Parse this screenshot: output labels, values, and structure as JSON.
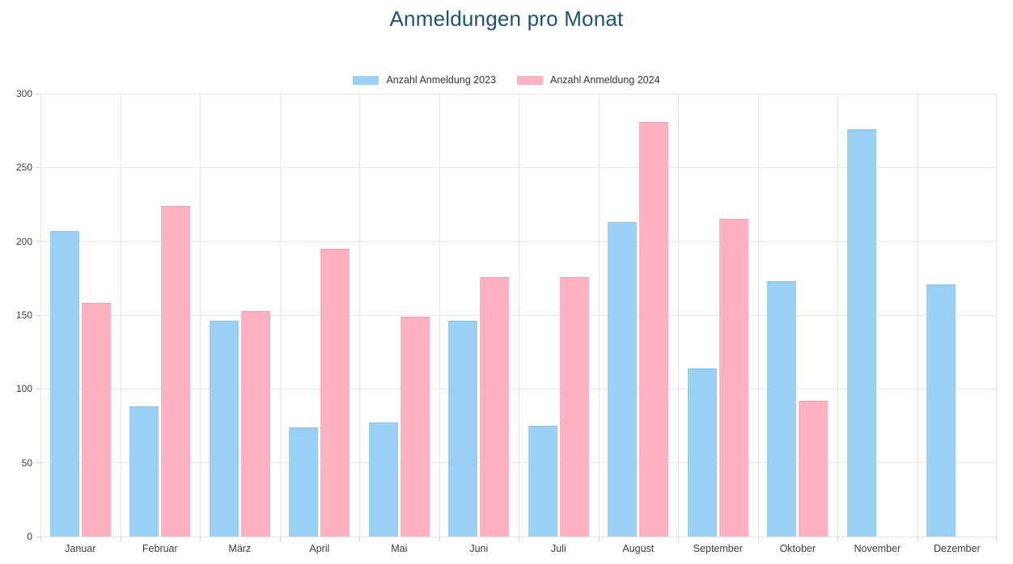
{
  "title": "Anmeldungen pro Monat",
  "title_color": "#1E5273",
  "chart_data": {
    "type": "bar",
    "title": "Anmeldungen pro Monat",
    "categories": [
      "Januar",
      "Februar",
      "März",
      "April",
      "Mai",
      "Juni",
      "Juli",
      "August",
      "September",
      "Oktober",
      "November",
      "Dezember"
    ],
    "series": [
      {
        "key": "2023",
        "name": "Anzahl Anmeldung 2023",
        "color": "#9BD0F5",
        "border_color": "#7FC0F0",
        "values": [
          207,
          88,
          146,
          74,
          77,
          146,
          75,
          213,
          114,
          173,
          276,
          171
        ]
      },
      {
        "key": "2024",
        "name": "Anzahl Anmeldung 2024",
        "color": "#FFB1C1",
        "border_color": "#FF9BB0",
        "values": [
          158,
          224,
          153,
          195,
          149,
          176,
          176,
          281,
          215,
          92,
          0,
          0
        ]
      }
    ],
    "xlabel": "",
    "ylabel": "",
    "ylim": [
      0,
      300
    ],
    "yticks": [
      0,
      50,
      100,
      150,
      200,
      250,
      300
    ],
    "grid": true,
    "legend_position": "top",
    "grid_color": "#e6e6e6",
    "axis_text_color": "#3d3d3d"
  }
}
